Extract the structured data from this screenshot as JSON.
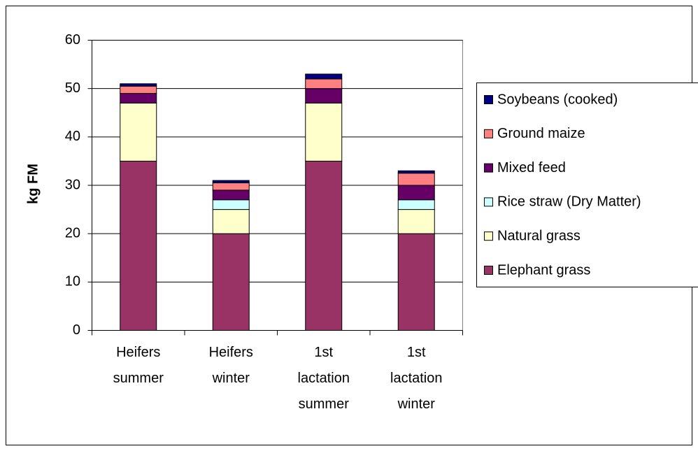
{
  "chart_data": {
    "type": "stacked_bar",
    "y_label": "kg FM",
    "categories": [
      "Heifers summer",
      "Heifers winter",
      "1st lactation summer",
      "1st lactation winter"
    ],
    "series": [
      {
        "name": "Elephant grass",
        "color": "#993366",
        "values": [
          35,
          20,
          35,
          20
        ]
      },
      {
        "name": "Natural grass",
        "color": "#FFFFCC",
        "values": [
          12,
          5,
          12,
          5
        ]
      },
      {
        "name": "Rice straw (Dry Matter)",
        "color": "#CCFFFF",
        "values": [
          0,
          2,
          0,
          2
        ]
      },
      {
        "name": "Mixed feed",
        "color": "#660066",
        "values": [
          2,
          2,
          3,
          3
        ]
      },
      {
        "name": "Ground maize",
        "color": "#FF8080",
        "values": [
          1.5,
          1.5,
          2,
          2.5
        ]
      },
      {
        "name": "Soybeans (cooked)",
        "color": "#000080",
        "values": [
          0.5,
          0.5,
          1,
          0.5
        ]
      }
    ],
    "ylim": [
      0,
      60
    ],
    "yticks": [
      0,
      10,
      20,
      30,
      40,
      50,
      60
    ],
    "grid": true,
    "legend": "right"
  }
}
